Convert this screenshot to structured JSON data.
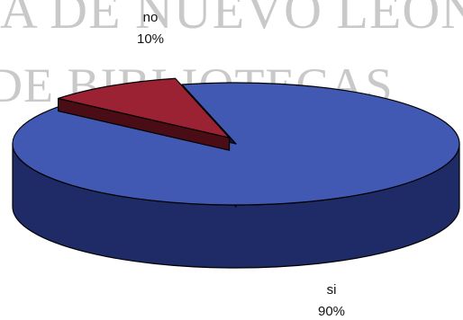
{
  "watermark": {
    "line1": "A DE NUEVO LEON",
    "line2": "DE BIBLIOTECAS"
  },
  "chart_data": {
    "type": "pie",
    "style": "3d-exploded",
    "categories": [
      "no",
      "si"
    ],
    "values": [
      10,
      90
    ],
    "labels": {
      "no": {
        "name": "no",
        "percent": "10%"
      },
      "si": {
        "name": "si",
        "percent": "90%"
      }
    },
    "colors": {
      "si": {
        "top": "#4259b3",
        "side": "#1e2b66",
        "edge": "#0e1640"
      },
      "no": {
        "top": "#9a2233",
        "side": "#4a0d16",
        "edge": "#2a050b"
      }
    }
  }
}
